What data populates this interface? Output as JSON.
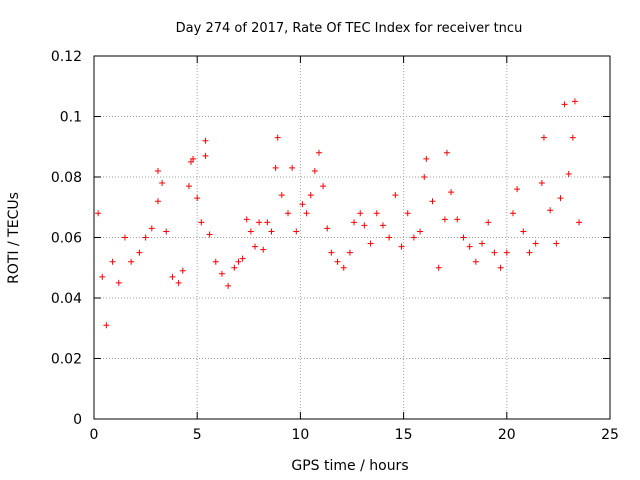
{
  "chart_data": {
    "type": "scatter",
    "title": "Day 274 of 2017, Rate Of TEC Index for receiver tncu",
    "xlabel": "GPS time / hours",
    "ylabel": "ROTI / TECUs",
    "xlim": [
      0,
      25
    ],
    "ylim": [
      0,
      0.12
    ],
    "xticks": [
      "0",
      "5",
      "10",
      "15",
      "20",
      "25"
    ],
    "yticks": [
      "0",
      "0.02",
      "0.04",
      "0.06",
      "0.08",
      "0.1",
      "0.12"
    ],
    "grid": true,
    "marker": "+",
    "color": "#ff0000",
    "series": [
      {
        "points": [
          [
            0.2,
            0.068
          ],
          [
            0.4,
            0.047
          ],
          [
            0.6,
            0.031
          ],
          [
            0.9,
            0.052
          ],
          [
            1.2,
            0.045
          ],
          [
            1.5,
            0.06
          ],
          [
            1.8,
            0.052
          ],
          [
            2.2,
            0.055
          ],
          [
            2.5,
            0.06
          ],
          [
            2.8,
            0.063
          ],
          [
            3.1,
            0.072
          ],
          [
            3.1,
            0.082
          ],
          [
            3.3,
            0.078
          ],
          [
            3.5,
            0.062
          ],
          [
            3.8,
            0.047
          ],
          [
            4.1,
            0.045
          ],
          [
            4.3,
            0.049
          ],
          [
            4.6,
            0.077
          ],
          [
            4.7,
            0.085
          ],
          [
            4.8,
            0.086
          ],
          [
            5.0,
            0.073
          ],
          [
            5.2,
            0.065
          ],
          [
            5.4,
            0.087
          ],
          [
            5.4,
            0.092
          ],
          [
            5.6,
            0.061
          ],
          [
            5.9,
            0.052
          ],
          [
            6.2,
            0.048
          ],
          [
            6.5,
            0.044
          ],
          [
            6.8,
            0.05
          ],
          [
            7.0,
            0.052
          ],
          [
            7.2,
            0.053
          ],
          [
            7.4,
            0.066
          ],
          [
            7.6,
            0.062
          ],
          [
            7.8,
            0.057
          ],
          [
            8.0,
            0.065
          ],
          [
            8.2,
            0.056
          ],
          [
            8.4,
            0.065
          ],
          [
            8.6,
            0.062
          ],
          [
            8.8,
            0.083
          ],
          [
            8.9,
            0.093
          ],
          [
            9.1,
            0.074
          ],
          [
            9.4,
            0.068
          ],
          [
            9.6,
            0.083
          ],
          [
            9.8,
            0.062
          ],
          [
            10.1,
            0.071
          ],
          [
            10.3,
            0.068
          ],
          [
            10.5,
            0.074
          ],
          [
            10.7,
            0.082
          ],
          [
            10.9,
            0.088
          ],
          [
            11.1,
            0.077
          ],
          [
            11.3,
            0.063
          ],
          [
            11.5,
            0.055
          ],
          [
            11.8,
            0.052
          ],
          [
            12.1,
            0.05
          ],
          [
            12.4,
            0.055
          ],
          [
            12.6,
            0.065
          ],
          [
            12.9,
            0.068
          ],
          [
            13.1,
            0.064
          ],
          [
            13.4,
            0.058
          ],
          [
            13.7,
            0.068
          ],
          [
            14.0,
            0.064
          ],
          [
            14.3,
            0.06
          ],
          [
            14.6,
            0.074
          ],
          [
            14.9,
            0.057
          ],
          [
            15.2,
            0.068
          ],
          [
            15.5,
            0.06
          ],
          [
            15.8,
            0.062
          ],
          [
            16.0,
            0.08
          ],
          [
            16.1,
            0.086
          ],
          [
            16.4,
            0.072
          ],
          [
            16.7,
            0.05
          ],
          [
            17.0,
            0.066
          ],
          [
            17.1,
            0.088
          ],
          [
            17.3,
            0.075
          ],
          [
            17.6,
            0.066
          ],
          [
            17.9,
            0.06
          ],
          [
            18.2,
            0.057
          ],
          [
            18.5,
            0.052
          ],
          [
            18.8,
            0.058
          ],
          [
            19.1,
            0.065
          ],
          [
            19.4,
            0.055
          ],
          [
            19.7,
            0.05
          ],
          [
            20.0,
            0.055
          ],
          [
            20.3,
            0.068
          ],
          [
            20.5,
            0.076
          ],
          [
            20.8,
            0.062
          ],
          [
            21.1,
            0.055
          ],
          [
            21.4,
            0.058
          ],
          [
            21.7,
            0.078
          ],
          [
            21.8,
            0.093
          ],
          [
            22.1,
            0.069
          ],
          [
            22.4,
            0.058
          ],
          [
            22.6,
            0.073
          ],
          [
            22.8,
            0.104
          ],
          [
            23.0,
            0.081
          ],
          [
            23.2,
            0.093
          ],
          [
            23.3,
            0.105
          ],
          [
            23.5,
            0.065
          ]
        ]
      }
    ]
  }
}
